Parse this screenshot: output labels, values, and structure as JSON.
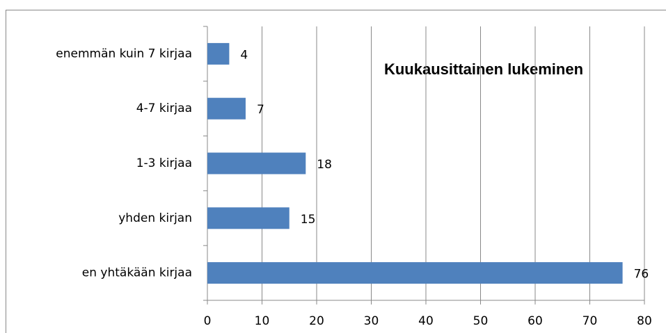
{
  "chart_data": {
    "type": "barh",
    "title": "Kuukausittainen lukeminen",
    "categories": [
      "enemmän kuin 7 kirjaa",
      "4-7 kirjaa",
      "1-3 kirjaa",
      "yhden kirjan",
      "en yhtäkään kirjaa"
    ],
    "values": [
      4,
      7,
      18,
      15,
      76
    ],
    "color": "#4f81bd",
    "xlim": [
      0,
      80
    ],
    "xticks": [
      0,
      10,
      20,
      30,
      40,
      50,
      60,
      70,
      80
    ],
    "grid": true
  }
}
